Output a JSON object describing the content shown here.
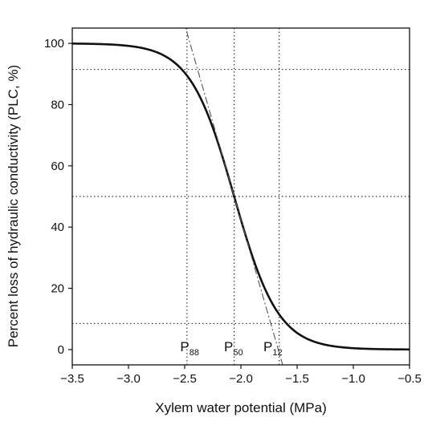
{
  "chart_data": {
    "type": "line",
    "title": "",
    "xlabel": "Xylem water potential (MPa)",
    "ylabel": "Percent loss of hydraulic conductivity (PLC, %)",
    "xlim": [
      -3.5,
      -0.5
    ],
    "ylim": [
      -5,
      105
    ],
    "xticks": [
      -3.5,
      -3.0,
      -2.5,
      -2.0,
      -1.5,
      -1.0,
      -0.5
    ],
    "xtick_labels": [
      "−3.5",
      "−3.0",
      "−2.5",
      "−2.0",
      "−1.5",
      "−1.0",
      "−0.5"
    ],
    "yticks": [
      0,
      20,
      40,
      60,
      80,
      100
    ],
    "ytick_labels": [
      "0",
      "20",
      "40",
      "60",
      "80",
      "100"
    ],
    "grid": false,
    "series": [
      {
        "style": "solid",
        "model": "sigmoid",
        "p50": -2.06,
        "slope": 5.1,
        "x_start": -3.5,
        "x_end": -0.5
      },
      {
        "style": "dash-dot",
        "model": "tangent at P50",
        "p50": -2.06,
        "slope": 5.1
      }
    ],
    "reference_lines": [
      {
        "style": "dotted",
        "orientation": "vertical",
        "x": -2.48
      },
      {
        "style": "dotted",
        "orientation": "vertical",
        "x": -2.06
      },
      {
        "style": "dotted",
        "orientation": "vertical",
        "x": -1.66
      },
      {
        "style": "dotted",
        "orientation": "horizontal",
        "y": 91.5
      },
      {
        "style": "dotted",
        "orientation": "horizontal",
        "y": 50
      },
      {
        "style": "dotted",
        "orientation": "horizontal",
        "y": 8.5
      }
    ],
    "annotations": [
      {
        "main": "P",
        "sub": "88",
        "x": -2.54,
        "y": -0.5
      },
      {
        "main": "P",
        "sub": "50",
        "x": -2.15,
        "y": -0.5
      },
      {
        "main": "P",
        "sub": "12",
        "x": -1.8,
        "y": -0.5
      }
    ]
  }
}
